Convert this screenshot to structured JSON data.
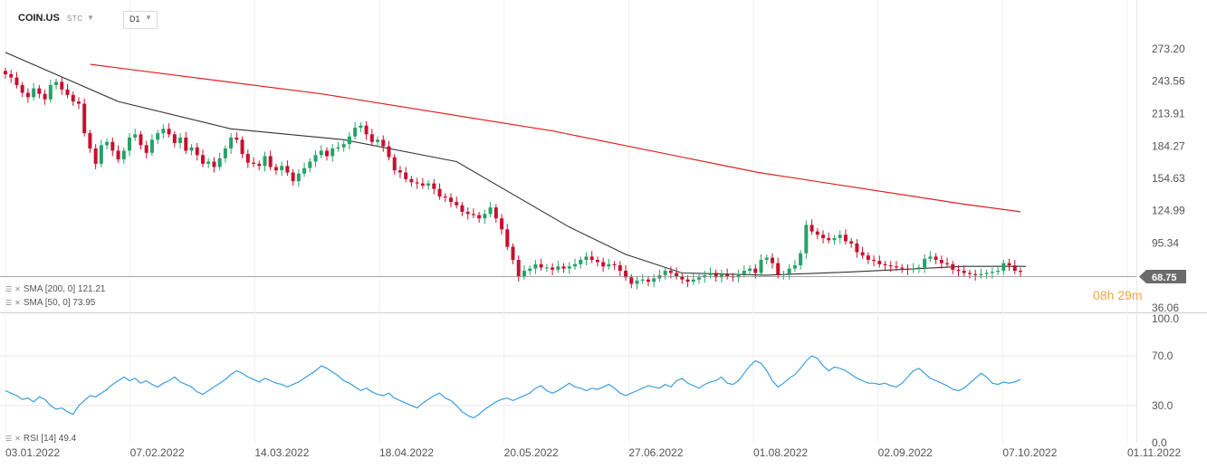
{
  "header": {
    "symbol": "COIN.US",
    "symbol_type": "STC",
    "timeframe": "D1"
  },
  "indicators": {
    "sma200_label": "SMA [200, 0] 121.21",
    "sma50_label": "SMA [50, 0] 73.95",
    "rsi_label": "RSI [14] 49.4"
  },
  "countdown": {
    "hours": "08",
    "h": "h",
    "minutes": "29",
    "m": "m"
  },
  "colors": {
    "up": "#26a269",
    "down": "#c8102e",
    "sma200": "#e02020",
    "sma50": "#333333",
    "rsi": "#3a9ee0",
    "price_tag": "#6b6b6b"
  },
  "chart_data": [
    {
      "type": "candlestick",
      "y_ticks": [
        "273.20",
        "243.56",
        "213.91",
        "184.27",
        "154.63",
        "124.99",
        "95.34",
        "36.06"
      ],
      "ylim": [
        36.06,
        273.2
      ],
      "x_ticks": [
        "03.01.2022",
        "07.02.2022",
        "14.03.2022",
        "18.04.2022",
        "20.05.2022",
        "27.06.2022",
        "01.08.2022",
        "02.09.2022",
        "07.10.2022",
        "01.11.2022"
      ],
      "last_price": "68.75",
      "close_series": [
        250,
        247,
        240,
        233,
        229,
        237,
        232,
        227,
        240,
        243,
        236,
        231,
        225,
        223,
        196,
        182,
        168,
        185,
        188,
        180,
        172,
        180,
        192,
        195,
        185,
        178,
        190,
        196,
        200,
        195,
        187,
        192,
        180,
        183,
        176,
        168,
        170,
        165,
        173,
        182,
        192,
        190,
        177,
        169,
        168,
        166,
        175,
        165,
        162,
        166,
        160,
        152,
        159,
        164,
        170,
        176,
        180,
        175,
        182,
        183,
        186,
        193,
        201,
        203,
        195,
        188,
        190,
        184,
        174,
        162,
        160,
        154,
        151,
        150,
        148,
        150,
        145,
        138,
        137,
        133,
        130,
        124,
        122,
        121,
        118,
        122,
        128,
        118,
        108,
        92,
        80,
        65,
        70,
        72,
        76,
        73,
        73,
        71,
        74,
        72,
        74,
        76,
        80,
        83,
        80,
        78,
        74,
        76,
        75,
        70,
        64,
        58,
        61,
        62,
        60,
        63,
        66,
        70,
        68,
        65,
        62,
        60,
        62,
        64,
        66,
        68,
        64,
        67,
        65,
        64,
        67,
        70,
        72,
        68,
        80,
        82,
        77,
        66,
        67,
        72,
        75,
        86,
        112,
        106,
        103,
        100,
        98,
        100,
        103,
        97,
        95,
        87,
        84,
        80,
        79,
        76,
        75,
        74,
        73,
        72,
        71,
        72,
        73,
        81,
        83,
        80,
        77,
        76,
        71,
        70,
        68,
        67,
        66,
        67,
        68,
        69,
        70,
        77,
        75,
        70,
        69
      ],
      "sma200": {
        "name": "SMA [200, 0]",
        "x": [
          0,
          45,
          90,
          130,
          170,
          181
        ],
        "y": [
          259,
          232,
          198,
          160,
          131,
          124
        ]
      },
      "sma50": {
        "name": "SMA [50, 0]",
        "x": [
          0,
          20,
          40,
          60,
          80,
          100,
          110,
          120,
          135,
          150,
          170,
          181
        ],
        "y": [
          270,
          225,
          200,
          190,
          170,
          110,
          85,
          68,
          66,
          69,
          74,
          74
        ]
      }
    },
    {
      "type": "line",
      "name": "RSI [14]",
      "y_ticks": [
        "100.0",
        "70.0",
        "30.0",
        "0.0"
      ],
      "ylim": [
        0,
        100
      ],
      "values": [
        42,
        40,
        38,
        35,
        36,
        33,
        37,
        35,
        30,
        27,
        28,
        25,
        23,
        30,
        34,
        38,
        37,
        40,
        43,
        47,
        50,
        53,
        50,
        52,
        48,
        50,
        47,
        45,
        48,
        50,
        53,
        49,
        47,
        45,
        41,
        39,
        42,
        45,
        48,
        51,
        55,
        58,
        56,
        53,
        51,
        49,
        52,
        50,
        48,
        47,
        45,
        47,
        49,
        52,
        55,
        58,
        62,
        60,
        57,
        54,
        50,
        48,
        45,
        42,
        44,
        41,
        39,
        38,
        40,
        36,
        34,
        32,
        30,
        28,
        32,
        35,
        38,
        40,
        36,
        34,
        30,
        25,
        22,
        20,
        23,
        27,
        30,
        33,
        35,
        36,
        34,
        36,
        38,
        40,
        44,
        46,
        42,
        40,
        42,
        45,
        48,
        45,
        44,
        42,
        44,
        43,
        45,
        47,
        44,
        40,
        38,
        40,
        42,
        44,
        46,
        45,
        44,
        47,
        45,
        50,
        52,
        48,
        46,
        44,
        47,
        49,
        50,
        53,
        48,
        47,
        50,
        56,
        62,
        66,
        64,
        58,
        50,
        45,
        48,
        52,
        55,
        60,
        66,
        70,
        68,
        62,
        58,
        61,
        60,
        58,
        55,
        52,
        50,
        48,
        48,
        47,
        48,
        46,
        45,
        48,
        53,
        58,
        60,
        56,
        52,
        50,
        48,
        46,
        43,
        42,
        44,
        48,
        52,
        56,
        53,
        48,
        47,
        49,
        48,
        49,
        51
      ]
    }
  ]
}
